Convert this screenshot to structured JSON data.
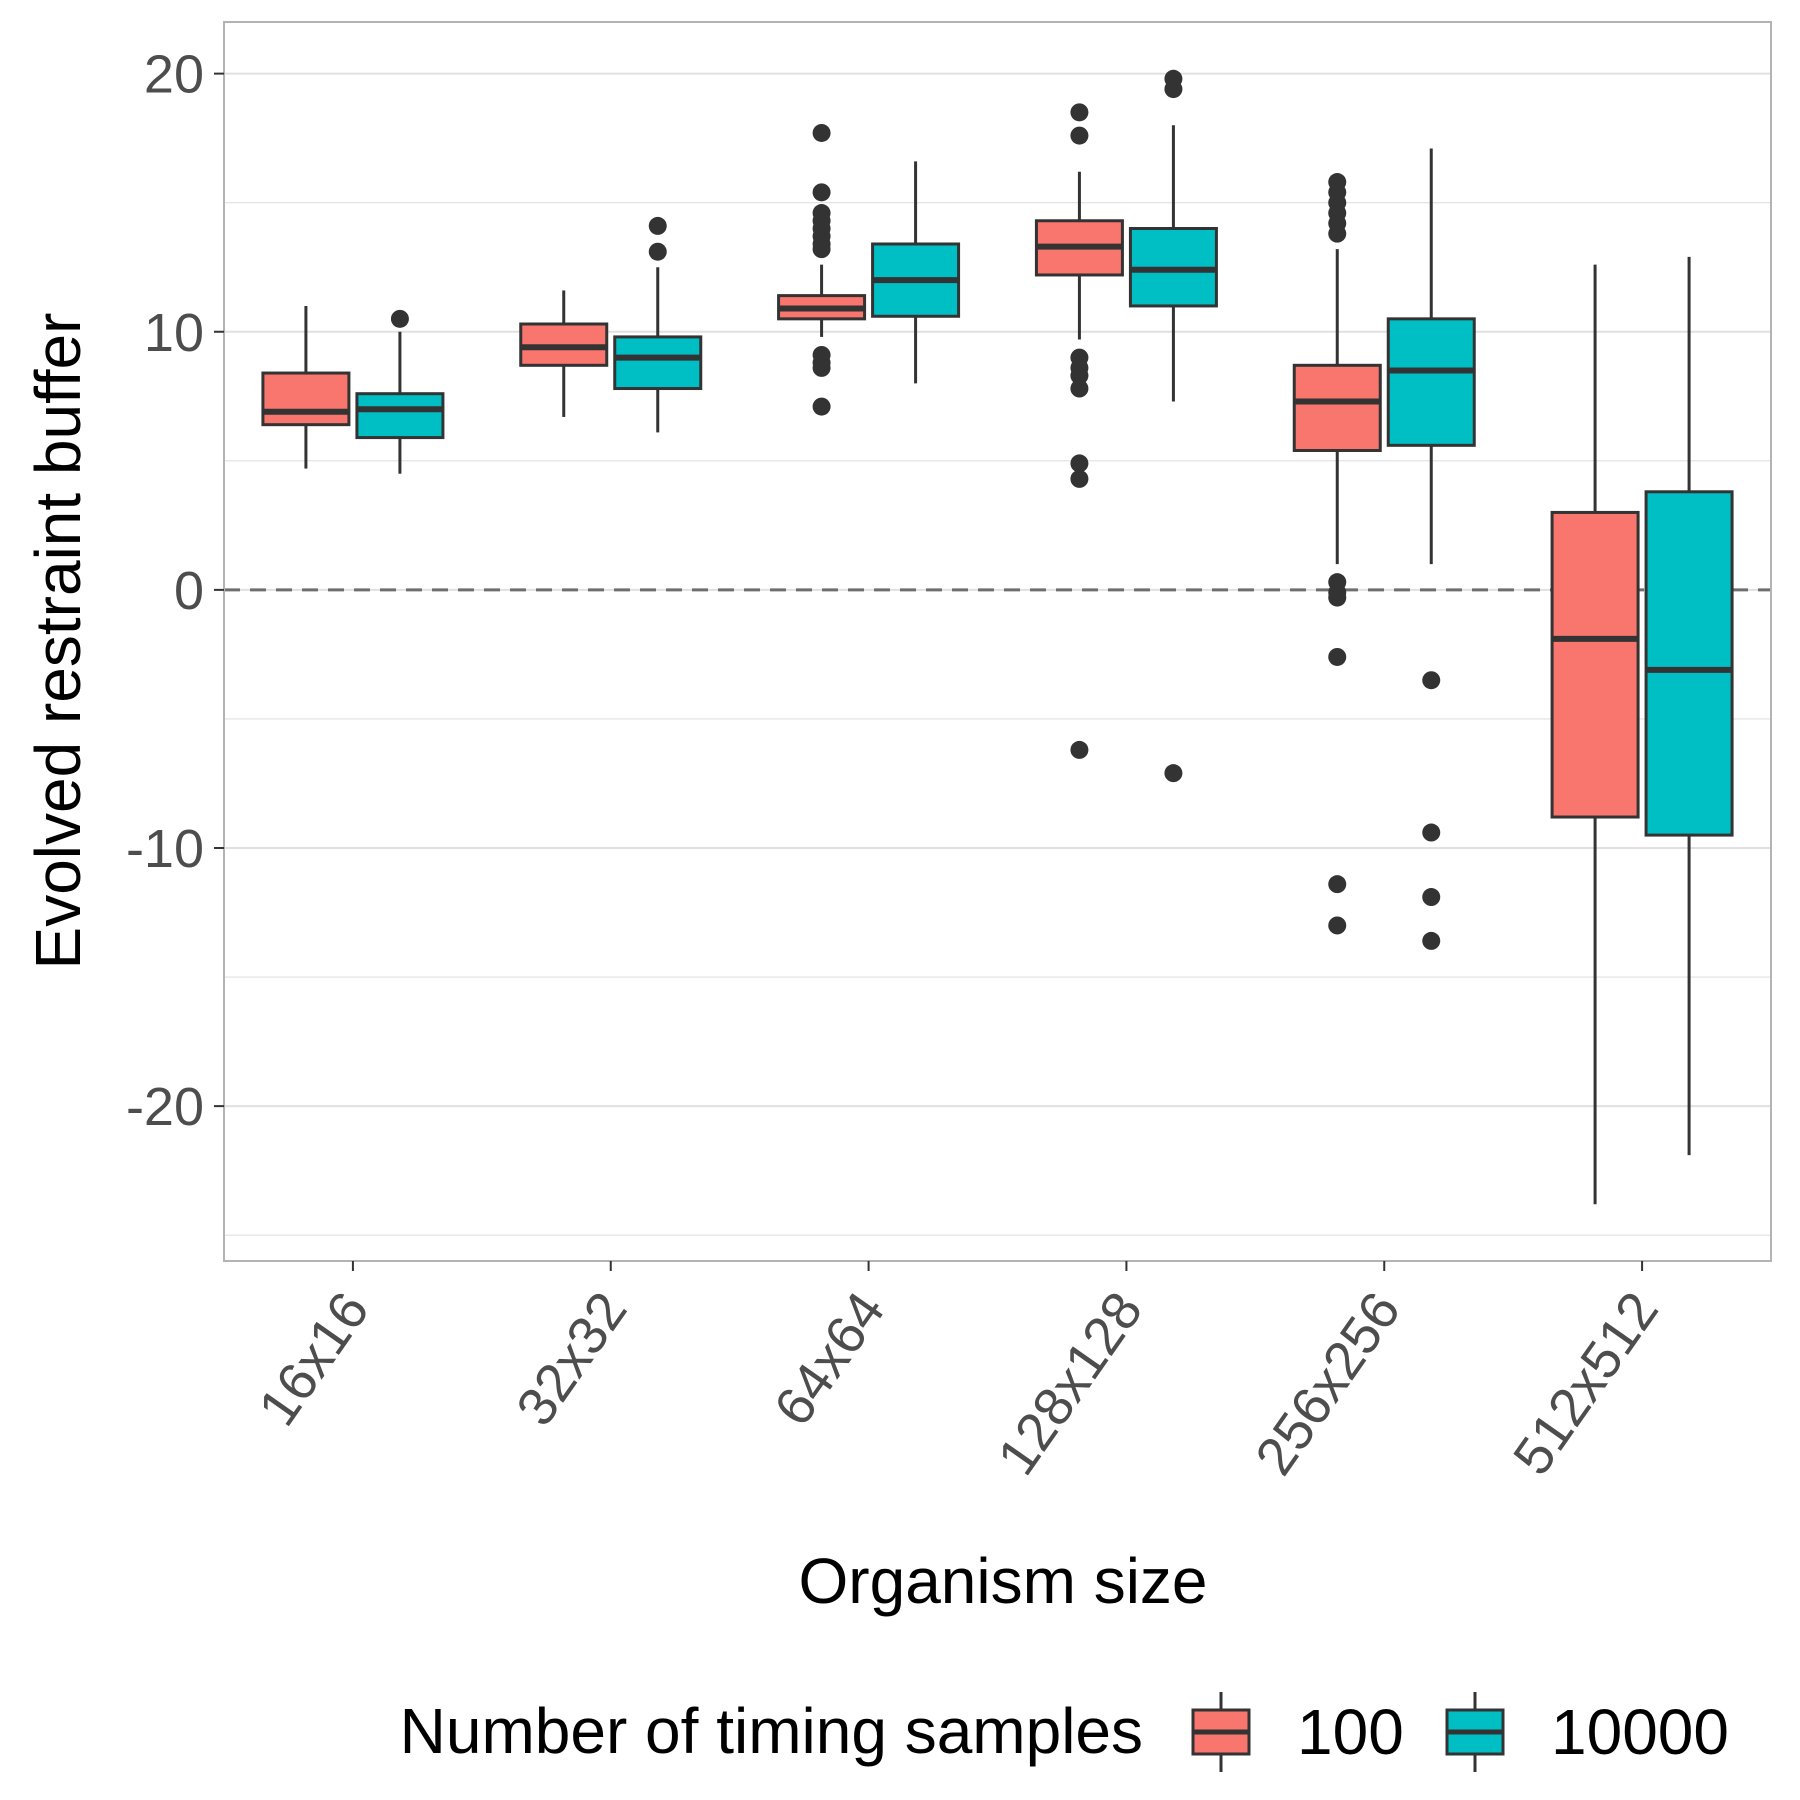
{
  "chart_data": {
    "type": "boxplot",
    "xlabel": "Organism size",
    "ylabel": "Evolved restraint buffer",
    "categories": [
      "16x16",
      "32x32",
      "64x64",
      "128x128",
      "256x256",
      "512x512"
    ],
    "ylim": [
      -26,
      22
    ],
    "yticks": [
      -20,
      -10,
      0,
      10,
      20
    ],
    "reference_line": {
      "y": 0,
      "style": "dashed"
    },
    "grid": true,
    "legend": {
      "title": "Number of timing samples",
      "position": "bottom"
    },
    "series": [
      {
        "name": "100",
        "color": "#F8766D",
        "boxes": [
          {
            "min": 4.7,
            "q1": 6.4,
            "median": 6.9,
            "q3": 8.4,
            "max": 11.0,
            "outliers": []
          },
          {
            "min": 6.7,
            "q1": 8.7,
            "median": 9.4,
            "q3": 10.3,
            "max": 11.6,
            "outliers": []
          },
          {
            "min": 9.8,
            "q1": 10.5,
            "median": 10.9,
            "q3": 11.4,
            "max": 12.6,
            "outliers": [
              17.7,
              15.4,
              14.6,
              14.3,
              14.0,
              13.7,
              13.4,
              13.2,
              9.1,
              8.8,
              8.6,
              7.1
            ]
          },
          {
            "min": 9.7,
            "q1": 12.2,
            "median": 13.3,
            "q3": 14.3,
            "max": 16.2,
            "outliers": [
              18.5,
              17.6,
              9.0,
              8.6,
              8.3,
              7.8,
              4.9,
              4.3,
              -6.2
            ]
          },
          {
            "min": 1.0,
            "q1": 5.4,
            "median": 7.3,
            "q3": 8.7,
            "max": 13.2,
            "outliers": [
              15.8,
              15.4,
              15.0,
              14.6,
              14.2,
              13.8,
              0.3,
              -0.1,
              -0.3,
              -2.6,
              -11.4,
              -13.0
            ]
          },
          {
            "min": -23.8,
            "q1": -8.8,
            "median": -1.9,
            "q3": 3.0,
            "max": 12.6,
            "outliers": []
          }
        ]
      },
      {
        "name": "10000",
        "color": "#00BFC4",
        "boxes": [
          {
            "min": 4.5,
            "q1": 5.9,
            "median": 7.0,
            "q3": 7.6,
            "max": 10.0,
            "outliers": [
              10.5
            ]
          },
          {
            "min": 6.1,
            "q1": 7.8,
            "median": 9.0,
            "q3": 9.8,
            "max": 12.5,
            "outliers": [
              14.1,
              13.1
            ]
          },
          {
            "min": 8.0,
            "q1": 10.6,
            "median": 12.0,
            "q3": 13.4,
            "max": 16.6,
            "outliers": []
          },
          {
            "min": 7.3,
            "q1": 11.0,
            "median": 12.4,
            "q3": 14.0,
            "max": 18.0,
            "outliers": [
              19.8,
              19.4,
              -7.1
            ]
          },
          {
            "min": 1.0,
            "q1": 5.6,
            "median": 8.5,
            "q3": 10.5,
            "max": 17.1,
            "outliers": [
              -3.5,
              -9.4,
              -11.9,
              -13.6
            ]
          },
          {
            "min": -21.9,
            "q1": -9.5,
            "median": -3.1,
            "q3": 3.8,
            "max": 12.9,
            "outliers": []
          }
        ]
      }
    ]
  }
}
